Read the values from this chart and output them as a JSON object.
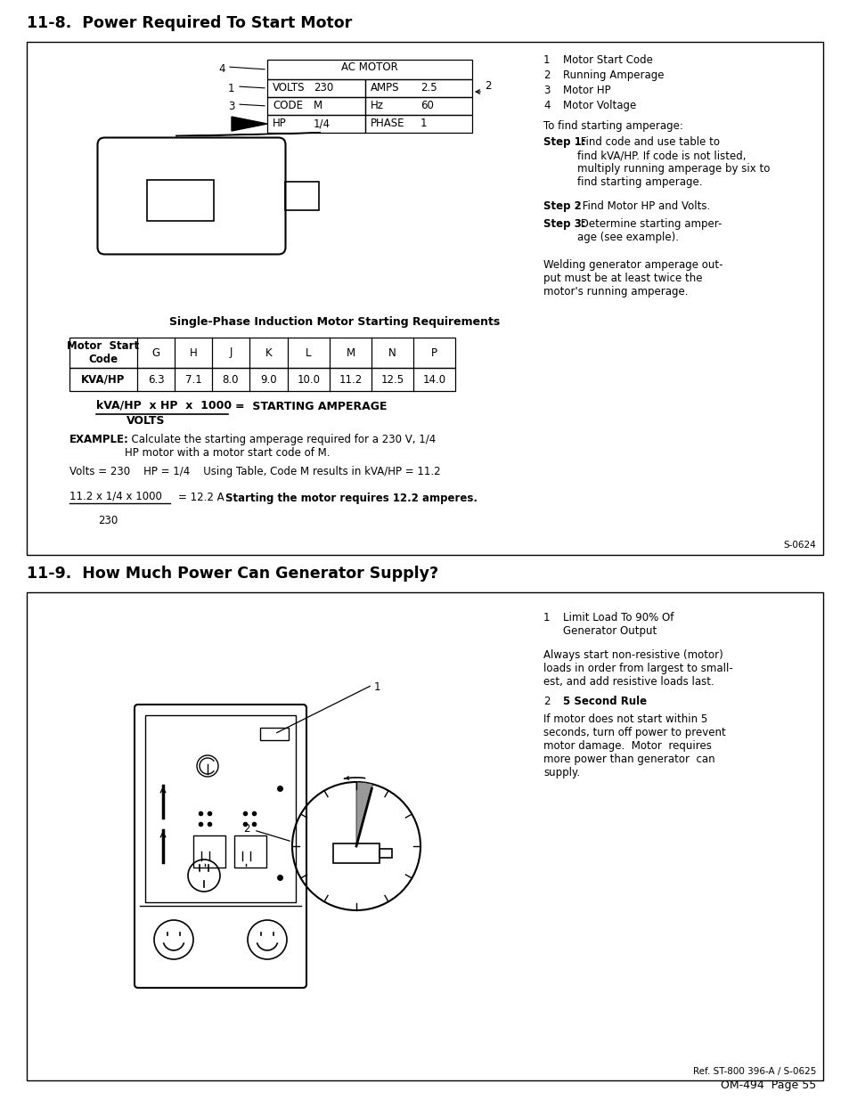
{
  "title1": "11-8.  Power Required To Start Motor",
  "title2": "11-9.  How Much Power Can Generator Supply?",
  "bg_color": "#ffffff",
  "page_footer": "OM-494  Page 55",
  "ref_footer": "Ref. ST-800 396-A / S-0625",
  "s0624": "S-0624",
  "ac_motor_rows": [
    [
      "VOLTS",
      "230",
      "AMPS",
      "2.5"
    ],
    [
      "CODE",
      "M",
      "Hz",
      "60"
    ],
    [
      "HP",
      "1/4",
      "PHASE",
      "1"
    ]
  ],
  "table_title": "Single-Phase Induction Motor Starting Requirements",
  "table_headers": [
    "Motor  Start\nCode",
    "G",
    "H",
    "J",
    "K",
    "L",
    "M",
    "N",
    "P"
  ],
  "table_row": [
    "KVA/HP",
    "6.3",
    "7.1",
    "8.0",
    "9.0",
    "10.0",
    "11.2",
    "12.5",
    "14.0"
  ],
  "formula_num": "kVA/HP  x HP  x  1000",
  "formula_den": "VOLTS",
  "formula_rhs": "=  STARTING AMPERAGE",
  "example_calc1": "Volts = 230    HP = 1/4    Using Table, Code M results in kVA/HP = 11.2",
  "example_calc2_num": "11.2 x 1/4 x 1000",
  "example_calc2_den": "230",
  "example_calc2_result": "= 12.2 A  ",
  "example_bold2": "Starting the motor requires 12.2 amperes.",
  "callouts": [
    [
      "1",
      "Motor Start Code"
    ],
    [
      "2",
      "Running Amperage"
    ],
    [
      "3",
      "Motor HP"
    ],
    [
      "4",
      "Motor Voltage"
    ]
  ],
  "to_find": "To find starting amperage:",
  "step1_bold": "Step 1:",
  "step1_text": " Find code and use table to\nfind kVA/HP. If code is not listed,\nmultiply running amperage by six to\nfind starting amperage.",
  "step2_bold": "Step 2",
  "step2_text": ": Find Motor HP and Volts.",
  "step3_bold": "Step 3:",
  "step3_text": " Determine starting amper-\nage (see example).",
  "welding_note": "Welding generator amperage out-\nput must be at least twice the\nmotor's running amperage.",
  "sec9_note1": "Limit Load To 90% Of\nGenerator Output",
  "sec9_note2_line1": "Always start non-resistive (motor)",
  "sec9_note2_line2": "loads in order from largest to small-",
  "sec9_note2_line3": "est, and add resistive loads last.",
  "sec9_note3": "5 Second Rule",
  "sec9_note4_line1": "If motor does not start within 5",
  "sec9_note4_line2": "seconds, turn off power to prevent",
  "sec9_note4_line3": "motor damage.  Motor  requires",
  "sec9_note4_line4": "more power than generator  can",
  "sec9_note4_line5": "supply."
}
